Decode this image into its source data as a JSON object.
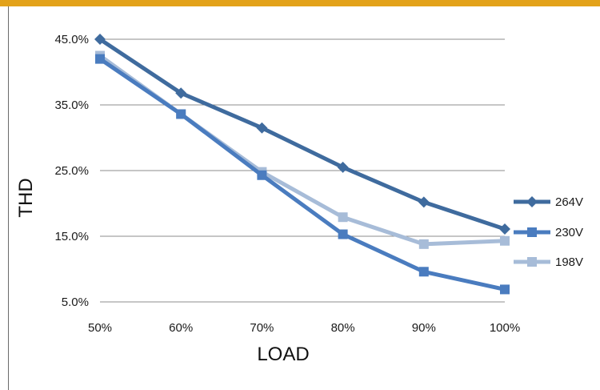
{
  "chart_data": {
    "type": "line",
    "categories": [
      "50%",
      "60%",
      "70%",
      "80%",
      "90%",
      "100%"
    ],
    "xlabel": "LOAD",
    "ylabel": "THD",
    "y_ticks": [
      "45.0%",
      "35.0%",
      "25.0%",
      "15.0%",
      "5.0%"
    ],
    "ylim": [
      5,
      45
    ],
    "grid": true,
    "legend_position": "right",
    "series": [
      {
        "name": "264V",
        "values": [
          45.0,
          36.8,
          31.5,
          25.5,
          20.2,
          16.1
        ],
        "color": "#3f6b9e",
        "marker": "diamond"
      },
      {
        "name": "230V",
        "values": [
          42.0,
          33.6,
          24.3,
          15.3,
          9.6,
          6.9
        ],
        "color": "#4a7cbf",
        "marker": "square"
      },
      {
        "name": "198V",
        "values": [
          42.5,
          33.6,
          24.8,
          17.9,
          13.8,
          14.3
        ],
        "color": "#a7bcd8",
        "marker": "square"
      }
    ]
  },
  "frame": {
    "accent_bar_color": "#e3a21a"
  }
}
